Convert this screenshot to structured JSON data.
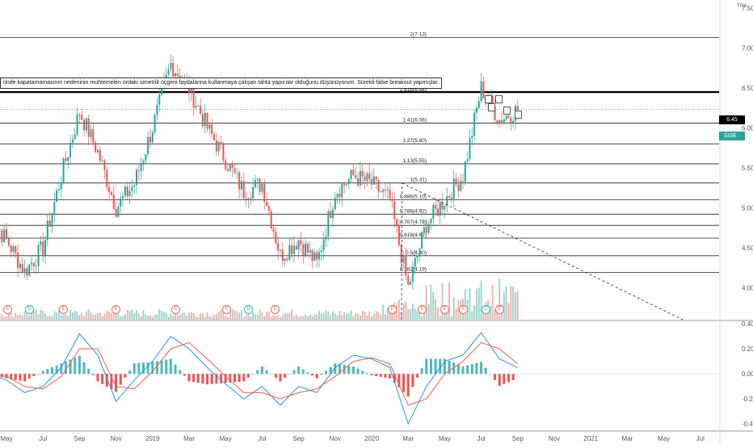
{
  "currency_label": "TRY",
  "annotation_text": "ünde kapatamamasının nedeninin muhtemelen ordaki simetrik üçgeni faydalanna kullanmaya çalışan tahta yapıcılar olduğunu düşünüyorum. Sürekli false breakout yapmışlar.",
  "price_labels": {
    "line_value": "6.45",
    "last_price": "SISE · 6.23"
  },
  "colors": {
    "up": "#26a69a",
    "down": "#ef5350",
    "macd": "#2196f3",
    "signal": "#ff5a4a",
    "volume_up": "#9ed6cf",
    "volume_down": "#f6b2ae"
  },
  "event_markers": [
    {
      "icon": "earnings-icon",
      "text": "E",
      "color": "#e06b5d"
    },
    {
      "icon": "dividend-icon",
      "text": "D",
      "color": "#2fb5c5"
    },
    {
      "icon": "earnings-icon",
      "text": "E",
      "color": "#e06b5d"
    },
    {
      "icon": "earnings-icon",
      "text": "E",
      "color": "#e06b5d"
    },
    {
      "icon": "earnings-icon",
      "text": "E",
      "color": "#e06b5d"
    },
    {
      "icon": "earnings-icon",
      "text": "E",
      "color": "#e06b5d"
    },
    {
      "icon": "dividend-icon",
      "text": "D",
      "color": "#2fb5c5"
    },
    {
      "icon": "earnings-icon",
      "text": "E",
      "color": "#e06b5d"
    },
    {
      "icon": "earnings-icon",
      "text": "E",
      "color": "#e06b5d"
    },
    {
      "icon": "earnings-icon",
      "text": "E",
      "color": "#e06b5d"
    },
    {
      "icon": "earnings-icon",
      "text": "E",
      "color": "#e06b5d"
    },
    {
      "icon": "earnings-icon",
      "text": "E",
      "color": "#e06b5d"
    },
    {
      "icon": "dividend-icon",
      "text": "D",
      "color": "#2fb5c5"
    },
    {
      "icon": "earnings-icon",
      "text": "E",
      "color": "#e06b5d"
    }
  ],
  "chart_data": [
    {
      "type": "candlestick",
      "ylim": [
        3.6,
        7.6
      ],
      "y_ticks": [
        "7.50",
        "7.00",
        "6.50",
        "6.00",
        "5.50",
        "5.00",
        "4.50",
        "4.00"
      ],
      "x_ticks": [
        "May",
        "Jul",
        "Sep",
        "Nov",
        "2019",
        "Mar",
        "May",
        "Jul",
        "Sep",
        "Nov",
        "2020",
        "Mar",
        "May",
        "Jul",
        "Sep",
        "Nov",
        "2021",
        "Mar",
        "May",
        "Jul"
      ],
      "fib_levels": [
        {
          "label": "2(7.13)",
          "value": 7.13
        },
        {
          "label": "1.618(6.44)",
          "value": 6.44
        },
        {
          "label": "1.41(6.06)",
          "value": 6.06
        },
        {
          "label": "1.27(5.80)",
          "value": 5.8
        },
        {
          "label": "1.13(5.55)",
          "value": 5.55
        },
        {
          "label": "1(5.31)",
          "value": 5.31
        },
        {
          "label": "0.886(5.10)",
          "value": 5.1
        },
        {
          "label": "0.786(4.92)",
          "value": 4.92
        },
        {
          "label": "0.707(4.78)",
          "value": 4.78
        },
        {
          "label": "0.618(4.62)",
          "value": 4.62
        },
        {
          "label": "0.5(4.40)",
          "value": 4.4
        },
        {
          "label": "0.382(4.19)",
          "value": 4.19
        }
      ],
      "horizontal_line": 6.45,
      "last_price": 6.23,
      "close_path": [
        {
          "x": "2018-04",
          "y": 4.9
        },
        {
          "x": "2018-05",
          "y": 4.6
        },
        {
          "x": "2018-06",
          "y": 4.2
        },
        {
          "x": "2018-07",
          "y": 4.5
        },
        {
          "x": "2018-08",
          "y": 5.4
        },
        {
          "x": "2018-09",
          "y": 6.2
        },
        {
          "x": "2018-10",
          "y": 5.7
        },
        {
          "x": "2018-11",
          "y": 5.0
        },
        {
          "x": "2018-12",
          "y": 5.3
        },
        {
          "x": "2019-01",
          "y": 6.0
        },
        {
          "x": "2019-02",
          "y": 6.8
        },
        {
          "x": "2019-03",
          "y": 6.5
        },
        {
          "x": "2019-04",
          "y": 6.0
        },
        {
          "x": "2019-05",
          "y": 5.6
        },
        {
          "x": "2019-06",
          "y": 5.2
        },
        {
          "x": "2019-07",
          "y": 5.3
        },
        {
          "x": "2019-08",
          "y": 4.4
        },
        {
          "x": "2019-09",
          "y": 4.6
        },
        {
          "x": "2019-10",
          "y": 4.3
        },
        {
          "x": "2019-11",
          "y": 5.2
        },
        {
          "x": "2019-12",
          "y": 5.4
        },
        {
          "x": "2020-01",
          "y": 5.3
        },
        {
          "x": "2020-02",
          "y": 5.1
        },
        {
          "x": "2020-03",
          "y": 4.0
        },
        {
          "x": "2020-04",
          "y": 4.8
        },
        {
          "x": "2020-05",
          "y": 5.1
        },
        {
          "x": "2020-06",
          "y": 5.4
        },
        {
          "x": "2020-07",
          "y": 6.5
        },
        {
          "x": "2020-08",
          "y": 6.1
        },
        {
          "x": "2020-09",
          "y": 6.23
        }
      ]
    },
    {
      "type": "line",
      "indicator": "MACD",
      "ylim": [
        -0.45,
        0.42
      ],
      "y_ticks": [
        "0.40",
        "0.20",
        "0.00",
        "-0.20",
        "-0.40"
      ],
      "series": [
        {
          "key": "macd",
          "values": [
            0.0,
            -0.05,
            -0.15,
            -0.1,
            0.05,
            0.32,
            0.15,
            -0.22,
            -0.05,
            0.1,
            0.3,
            0.2,
            0.05,
            -0.08,
            -0.2,
            -0.1,
            -0.25,
            -0.1,
            -0.15,
            0.05,
            0.15,
            0.12,
            0.05,
            -0.4,
            -0.1,
            0.1,
            0.15,
            0.33,
            0.12,
            0.05
          ]
        },
        {
          "key": "signal",
          "values": [
            0.0,
            -0.02,
            -0.1,
            -0.12,
            -0.02,
            0.2,
            0.2,
            -0.1,
            -0.12,
            0.02,
            0.2,
            0.25,
            0.12,
            -0.02,
            -0.15,
            -0.15,
            -0.2,
            -0.15,
            -0.12,
            -0.02,
            0.1,
            0.13,
            0.08,
            -0.25,
            -0.2,
            0.0,
            0.1,
            0.25,
            0.2,
            0.08
          ]
        }
      ]
    }
  ]
}
